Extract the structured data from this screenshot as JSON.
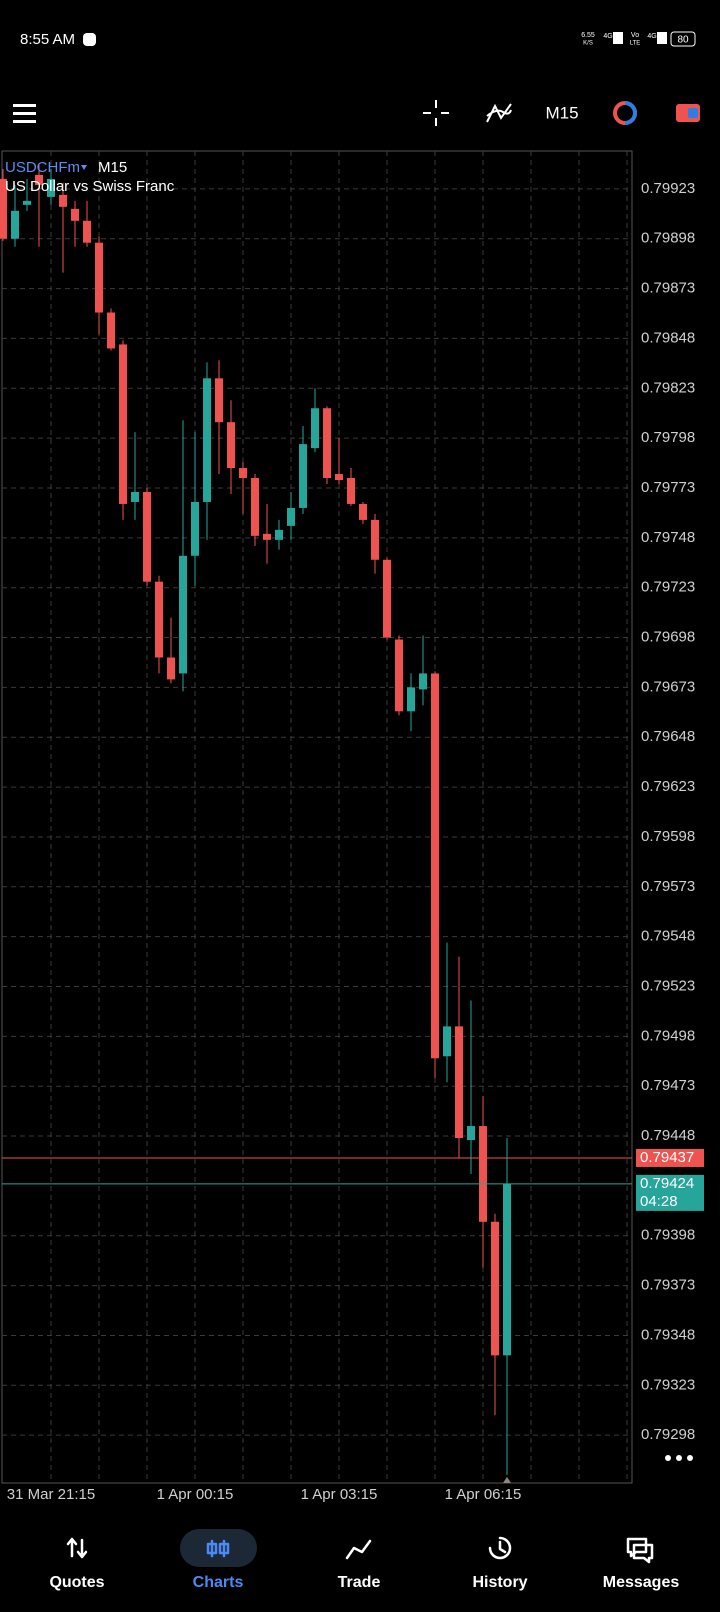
{
  "status_bar": {
    "time": "8:55 AM",
    "speed": "6.55",
    "speed_unit": "K/S",
    "net1": "4G",
    "volte": "Vo",
    "lte": "LTE",
    "net2": "4G",
    "battery": "80"
  },
  "toolbar": {
    "timeframe": "M15"
  },
  "chart_data": {
    "type": "candlestick",
    "symbol": "USDCHFm",
    "timeframe": "M15",
    "subtitle": "US Dollar vs Swiss Franc",
    "categories": [
      null,
      null,
      null,
      null,
      "31 Mar 21:15",
      null,
      null,
      null,
      null,
      null,
      null,
      null,
      null,
      null,
      null,
      null,
      "1 Apr 00:15",
      null,
      null,
      null,
      null,
      null,
      null,
      null,
      null,
      null,
      null,
      null,
      "1 Apr 03:15",
      null,
      null,
      null,
      null,
      null,
      null,
      null,
      null,
      null,
      null,
      null,
      "1 Apr 06:15",
      null,
      null
    ],
    "open": [
      0.79928,
      0.79898,
      0.79915,
      0.7993,
      0.79919,
      0.7992,
      0.79913,
      0.79907,
      0.79896,
      0.79861,
      0.79845,
      0.79766,
      0.79771,
      0.79726,
      0.79688,
      0.7968,
      0.79739,
      0.79766,
      0.79828,
      0.79806,
      0.79783,
      0.79778,
      0.7975,
      0.79747,
      0.79754,
      0.79763,
      0.79793,
      0.79813,
      0.7978,
      0.79778,
      0.79765,
      0.79757,
      0.79737,
      0.79697,
      0.79661,
      0.79672,
      0.7968,
      0.79488,
      0.79503,
      0.79446,
      0.79453,
      0.79405,
      0.79338
    ],
    "high": [
      0.79933,
      0.79925,
      0.79928,
      0.79935,
      0.79933,
      0.79926,
      0.79917,
      0.79917,
      0.79899,
      0.79863,
      0.79847,
      0.79801,
      0.79773,
      0.79729,
      0.79708,
      0.79807,
      0.79801,
      0.79836,
      0.79837,
      0.79817,
      0.79786,
      0.7978,
      0.79765,
      0.79757,
      0.79771,
      0.79804,
      0.79823,
      0.79814,
      0.79798,
      0.79783,
      0.79766,
      0.7976,
      0.79738,
      0.79699,
      0.7968,
      0.79699,
      0.79681,
      0.79545,
      0.79538,
      0.79516,
      0.79468,
      0.79409,
      0.79447
    ],
    "low": [
      0.79897,
      0.79894,
      0.79912,
      0.79894,
      0.79915,
      0.79881,
      0.79894,
      0.79894,
      0.7985,
      0.79842,
      0.79757,
      0.79757,
      0.79724,
      0.7968,
      0.79675,
      0.79671,
      0.79724,
      0.79747,
      0.7978,
      0.7977,
      0.7976,
      0.79744,
      0.79735,
      0.79742,
      0.79747,
      0.7976,
      0.79791,
      0.79775,
      0.79775,
      0.79764,
      0.79755,
      0.7973,
      0.79697,
      0.79659,
      0.79651,
      0.79664,
      0.79477,
      0.79475,
      0.79437,
      0.79429,
      0.79382,
      0.79308,
      0.79278
    ],
    "close": [
      0.79898,
      0.79912,
      0.79917,
      0.79925,
      0.79928,
      0.79914,
      0.79907,
      0.79896,
      0.79861,
      0.79843,
      0.79765,
      0.79771,
      0.79726,
      0.79688,
      0.79677,
      0.79739,
      0.79766,
      0.79828,
      0.79806,
      0.79783,
      0.79778,
      0.79749,
      0.79747,
      0.79752,
      0.79763,
      0.79795,
      0.79813,
      0.79778,
      0.79777,
      0.79765,
      0.79757,
      0.79737,
      0.79698,
      0.79661,
      0.79673,
      0.7968,
      0.79487,
      0.79503,
      0.79447,
      0.79453,
      0.79405,
      0.79338,
      0.79424
    ],
    "up_color": "#26a69a",
    "down_color": "#ef5350",
    "ylim": [
      0.79274,
      0.79942
    ],
    "yticks": [
      0.79923,
      0.79898,
      0.79873,
      0.79848,
      0.79823,
      0.79798,
      0.79773,
      0.79748,
      0.79723,
      0.79698,
      0.79673,
      0.79648,
      0.79623,
      0.79598,
      0.79573,
      0.79548,
      0.79523,
      0.79498,
      0.79473,
      0.79448,
      0.79398,
      0.79373,
      0.79348,
      0.79323,
      0.79298
    ],
    "grid": true,
    "price_lines": [
      {
        "value": 0.79437,
        "color": "#ef5350"
      },
      {
        "value": 0.79424,
        "color": "#26a69a",
        "countdown": "04:28"
      }
    ]
  },
  "nav": {
    "items": [
      "Quotes",
      "Charts",
      "Trade",
      "History",
      "Messages"
    ],
    "active": 1
  }
}
